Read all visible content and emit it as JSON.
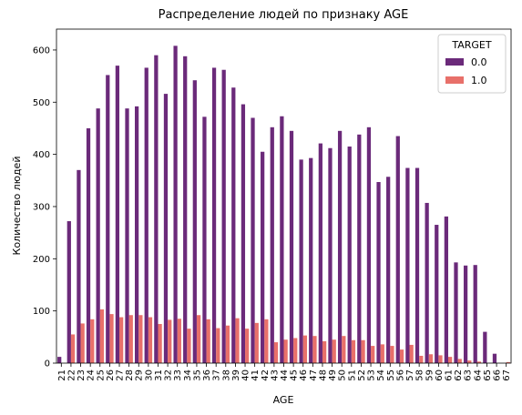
{
  "chart_data": {
    "type": "bar",
    "title": "Распределение людей по признаку AGE",
    "xlabel": "AGE",
    "ylabel": "Количество людей",
    "ylim": [
      0,
      640
    ],
    "yticks": [
      0,
      100,
      200,
      300,
      400,
      500,
      600
    ],
    "categories": [
      "21",
      "22",
      "23",
      "24",
      "25",
      "26",
      "27",
      "28",
      "29",
      "30",
      "31",
      "32",
      "33",
      "34",
      "35",
      "36",
      "37",
      "38",
      "39",
      "40",
      "41",
      "42",
      "43",
      "44",
      "45",
      "46",
      "47",
      "48",
      "49",
      "50",
      "51",
      "52",
      "53",
      "54",
      "55",
      "56",
      "57",
      "58",
      "59",
      "60",
      "61",
      "62",
      "63",
      "64",
      "65",
      "66",
      "67"
    ],
    "legend_title": "TARGET",
    "legend_position": "top-right",
    "series": [
      {
        "name": "0.0",
        "color": "#6b2a7a",
        "values": [
          12,
          272,
          370,
          450,
          488,
          552,
          570,
          488,
          492,
          566,
          590,
          516,
          608,
          588,
          542,
          472,
          566,
          562,
          528,
          496,
          470,
          405,
          452,
          473,
          445,
          390,
          393,
          421,
          412,
          445,
          415,
          438,
          452,
          347,
          357,
          435,
          374,
          374,
          307,
          265,
          281,
          193,
          187,
          188,
          60,
          18,
          0
        ]
      },
      {
        "name": "1.0",
        "color": "#e8706a",
        "values": [
          0,
          55,
          76,
          84,
          103,
          94,
          88,
          92,
          92,
          88,
          75,
          83,
          85,
          66,
          92,
          84,
          67,
          72,
          86,
          66,
          77,
          84,
          40,
          45,
          48,
          53,
          52,
          42,
          45,
          52,
          44,
          44,
          33,
          36,
          33,
          26,
          35,
          14,
          17,
          15,
          12,
          8,
          5,
          3,
          0,
          0,
          2
        ]
      }
    ]
  }
}
